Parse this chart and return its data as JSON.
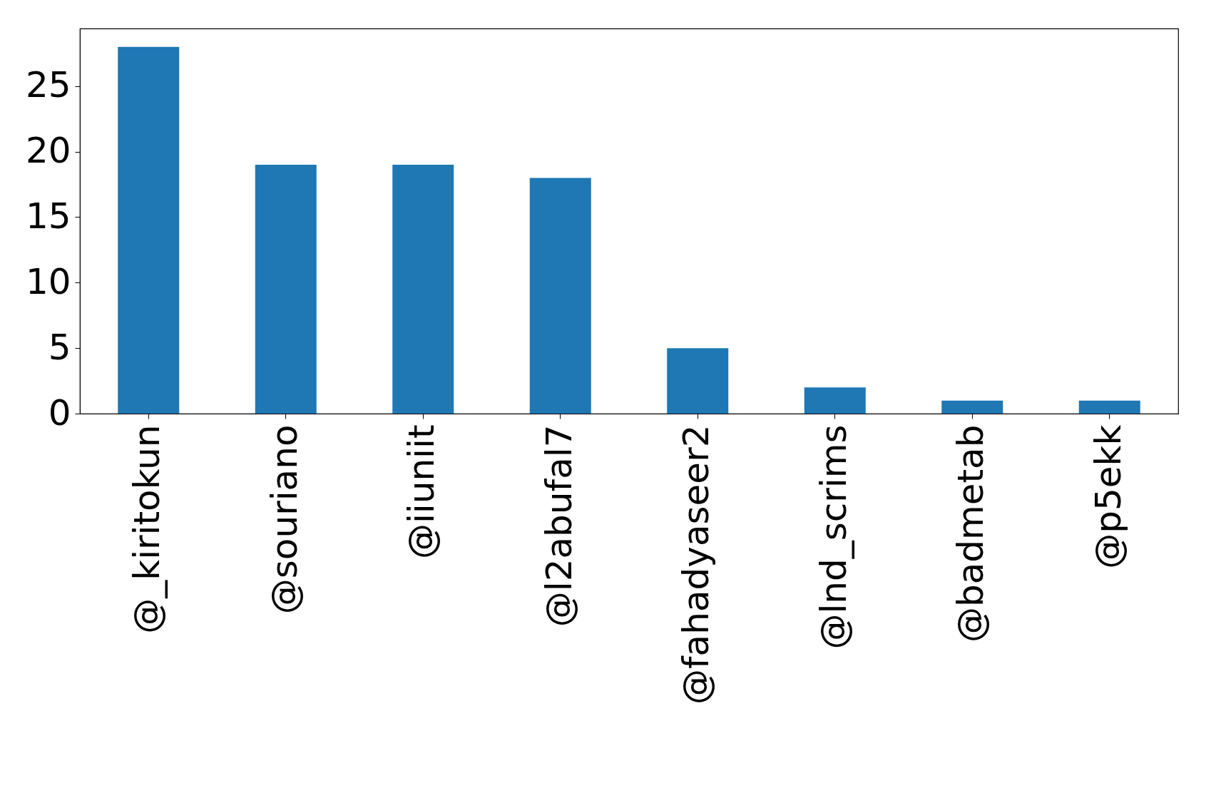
{
  "chart_data": {
    "type": "bar",
    "categories": [
      "@_kiritokun",
      "@souriano",
      "@iiuniit",
      "@l2abufal7",
      "@fahadyaseer2",
      "@lnd_scrims",
      "@badmetab",
      "@p5ekk"
    ],
    "values": [
      28,
      19,
      19,
      18,
      5,
      2,
      1,
      1
    ],
    "color": "#1f77b4",
    "ylim": [
      0,
      29.4
    ],
    "yticks": [
      0,
      5,
      10,
      15,
      20,
      25
    ],
    "grid": false
  }
}
